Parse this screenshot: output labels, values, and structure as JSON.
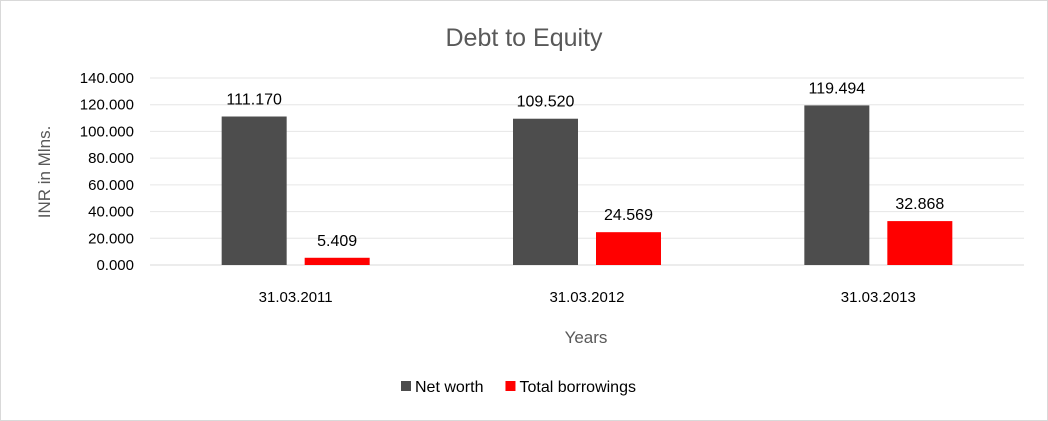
{
  "chart_data": {
    "type": "bar",
    "title": "Debt to Equity",
    "xlabel": "Years",
    "ylabel": "INR in Mlns.",
    "categories": [
      "31.03.2011",
      "31.03.2012",
      "31.03.2013"
    ],
    "series": [
      {
        "name": "Net worth",
        "values": [
          111.17,
          109.52,
          119.494
        ],
        "labels": [
          "111.170",
          "109.520",
          "119.494"
        ],
        "color": "#4d4d4d"
      },
      {
        "name": "Total borrowings",
        "values": [
          5.409,
          24.569,
          32.868
        ],
        "labels": [
          "5.409",
          "24.569",
          "32.868"
        ],
        "color": "#ff0000"
      }
    ],
    "ylim": [
      0,
      140
    ],
    "yticks": [
      "0.000",
      "20.000",
      "40.000",
      "60.000",
      "80.000",
      "100.000",
      "120.000",
      "140.000"
    ],
    "grid": true,
    "legend": "bottom"
  }
}
